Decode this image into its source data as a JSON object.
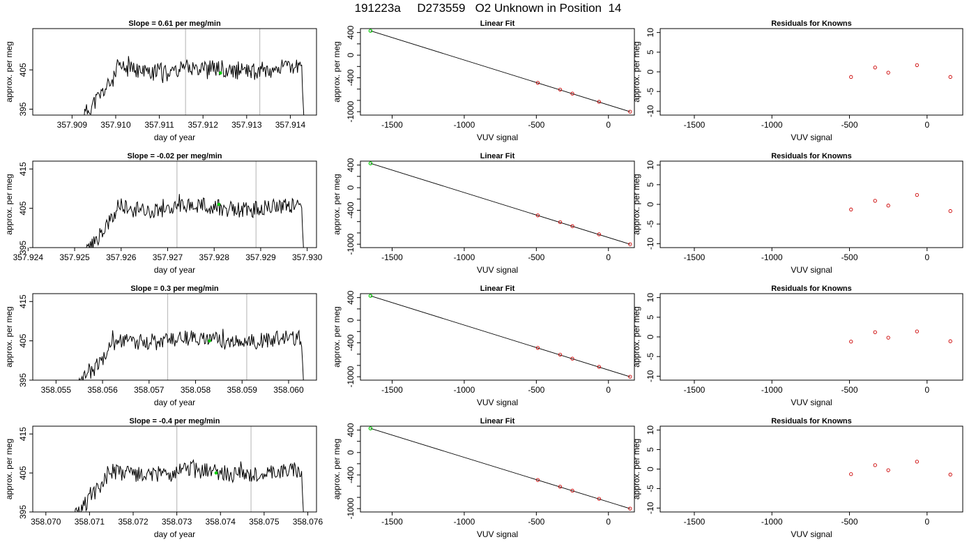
{
  "title": "191223a     D273559   O2 Unknown in Position  14",
  "colors": {
    "trace": "#000000",
    "marker_unknown": "#00cc00",
    "marker_known": "#cc0000",
    "vline": "#bfbfbf",
    "frame": "#000000"
  },
  "chart_data": [
    {
      "type": "line",
      "title": "Slope =  0.61  per meg/min",
      "xlabel": "day of year",
      "ylabel": "approx. per meg",
      "xlim": [
        357.9081,
        357.9146
      ],
      "ylim": [
        393.5,
        415.5
      ],
      "x_ticks": [
        "357.909",
        "357.910",
        "357.911",
        "357.912",
        "357.913",
        "357.914"
      ],
      "y_ticks": [
        "395",
        "405"
      ],
      "vlines": [
        357.9116,
        357.9133
      ],
      "marker": {
        "x": 357.9124,
        "y": 404.2
      },
      "trace_seed": 11
    },
    {
      "type": "line",
      "title": "Linear Fit",
      "xlabel": "VUV signal",
      "ylabel": "approx. per meg",
      "xlim": [
        -1720,
        180
      ],
      "ylim": [
        -1060,
        470
      ],
      "x_ticks": [
        "-1500",
        "-1000",
        "-500",
        "0"
      ],
      "y_ticks": [
        "400",
        "0",
        "-400",
        "-1000"
      ],
      "fit_line": [
        [
          -1650,
          430
        ],
        [
          150,
          -1000
        ]
      ],
      "unknown_points": [
        [
          -1650,
          430
        ]
      ],
      "known_points": [
        [
          -490,
          -490
        ],
        [
          -335,
          -610
        ],
        [
          -250,
          -680
        ],
        [
          -65,
          -825
        ],
        [
          150,
          -1000
        ]
      ]
    },
    {
      "type": "scatter",
      "title": "Residuals for Knowns",
      "xlabel": "VUV signal",
      "ylabel": "approx. per meg",
      "xlim": [
        -1720,
        230
      ],
      "ylim": [
        -11,
        11
      ],
      "x_ticks": [
        "-1500",
        "-1000",
        "-500",
        "0"
      ],
      "y_ticks": [
        "10",
        "5",
        "0",
        "-5",
        "-10"
      ],
      "known_points": [
        [
          -490,
          -1.3
        ],
        [
          -335,
          1.1
        ],
        [
          -250,
          -0.2
        ],
        [
          -65,
          1.7
        ],
        [
          150,
          -1.3
        ]
      ]
    },
    {
      "type": "line",
      "title": "Slope =  -0.02  per meg/min",
      "xlabel": "day of year",
      "ylabel": "approx. per meg",
      "xlim": [
        357.9241,
        357.9302
      ],
      "ylim": [
        395,
        417
      ],
      "x_ticks": [
        "357.924",
        "357.925",
        "357.926",
        "357.927",
        "357.928",
        "357.929",
        "357.930"
      ],
      "y_ticks": [
        "415",
        "405",
        "395"
      ],
      "vlines": [
        357.9272,
        357.9289
      ],
      "marker": {
        "x": 357.9281,
        "y": 406.0
      },
      "trace_seed": 23
    },
    {
      "type": "line",
      "title": "Linear Fit",
      "xlabel": "VUV signal",
      "ylabel": "approx. per meg",
      "xlim": [
        -1720,
        180
      ],
      "ylim": [
        -1060,
        470
      ],
      "x_ticks": [
        "-1500",
        "-1000",
        "-500",
        "0"
      ],
      "y_ticks": [
        "400",
        "0",
        "-400",
        "-1000"
      ],
      "fit_line": [
        [
          -1650,
          430
        ],
        [
          150,
          -1000
        ]
      ],
      "unknown_points": [
        [
          -1650,
          430
        ]
      ],
      "known_points": [
        [
          -490,
          -490
        ],
        [
          -335,
          -610
        ],
        [
          -250,
          -680
        ],
        [
          -65,
          -825
        ],
        [
          150,
          -1000
        ]
      ]
    },
    {
      "type": "scatter",
      "title": "Residuals for Knowns",
      "xlabel": "VUV signal",
      "ylabel": "approx. per meg",
      "xlim": [
        -1720,
        230
      ],
      "ylim": [
        -11,
        11
      ],
      "x_ticks": [
        "-1500",
        "-1000",
        "-500",
        "0"
      ],
      "y_ticks": [
        "10",
        "5",
        "0",
        "-5",
        "-10"
      ],
      "known_points": [
        [
          -490,
          -1.3
        ],
        [
          -335,
          0.9
        ],
        [
          -250,
          -0.3
        ],
        [
          -65,
          2.4
        ],
        [
          150,
          -1.7
        ]
      ]
    },
    {
      "type": "line",
      "title": "Slope =  0.3  per meg/min",
      "xlabel": "day of year",
      "ylabel": "approx. per meg",
      "xlim": [
        358.0545,
        358.0606
      ],
      "ylim": [
        395,
        417
      ],
      "x_ticks": [
        "358.055",
        "358.056",
        "358.057",
        "358.058",
        "358.059",
        "358.060"
      ],
      "y_ticks": [
        "415",
        "405",
        "395"
      ],
      "vlines": [
        358.0574,
        358.0591
      ],
      "marker": {
        "x": 358.0583,
        "y": 405.0
      },
      "trace_seed": 37
    },
    {
      "type": "line",
      "title": "Linear Fit",
      "xlabel": "VUV signal",
      "ylabel": "approx. per meg",
      "xlim": [
        -1720,
        180
      ],
      "ylim": [
        -1060,
        470
      ],
      "x_ticks": [
        "-1500",
        "-1000",
        "-500",
        "0"
      ],
      "y_ticks": [
        "400",
        "0",
        "-400",
        "-1000"
      ],
      "fit_line": [
        [
          -1650,
          430
        ],
        [
          150,
          -1000
        ]
      ],
      "unknown_points": [
        [
          -1650,
          430
        ]
      ],
      "known_points": [
        [
          -490,
          -490
        ],
        [
          -335,
          -610
        ],
        [
          -250,
          -680
        ],
        [
          -65,
          -825
        ],
        [
          150,
          -1000
        ]
      ]
    },
    {
      "type": "scatter",
      "title": "Residuals for Knowns",
      "xlabel": "VUV signal",
      "ylabel": "approx. per meg",
      "xlim": [
        -1720,
        230
      ],
      "ylim": [
        -11,
        11
      ],
      "x_ticks": [
        "-1500",
        "-1000",
        "-500",
        "0"
      ],
      "y_ticks": [
        "10",
        "5",
        "0",
        "-5",
        "-10"
      ],
      "known_points": [
        [
          -490,
          -1.2
        ],
        [
          -335,
          1.2
        ],
        [
          -250,
          -0.2
        ],
        [
          -65,
          1.4
        ],
        [
          150,
          -1.1
        ]
      ]
    },
    {
      "type": "line",
      "title": "Slope =  -0.4  per meg/min",
      "xlabel": "day of year",
      "ylabel": "approx. per meg",
      "xlim": [
        358.0697,
        358.0762
      ],
      "ylim": [
        395,
        417
      ],
      "x_ticks": [
        "358.070",
        "358.071",
        "358.072",
        "358.073",
        "358.074",
        "358.075",
        "358.076"
      ],
      "y_ticks": [
        "415",
        "405",
        "395"
      ],
      "vlines": [
        358.073,
        358.0747
      ],
      "marker": {
        "x": 358.0739,
        "y": 405.0
      },
      "trace_seed": 51
    },
    {
      "type": "line",
      "title": "Linear Fit",
      "xlabel": "VUV signal",
      "ylabel": "approx. per meg",
      "xlim": [
        -1720,
        180
      ],
      "ylim": [
        -1060,
        470
      ],
      "x_ticks": [
        "-1500",
        "-1000",
        "-500",
        "0"
      ],
      "y_ticks": [
        "400",
        "0",
        "-400",
        "-1000"
      ],
      "fit_line": [
        [
          -1650,
          430
        ],
        [
          150,
          -1000
        ]
      ],
      "unknown_points": [
        [
          -1650,
          430
        ]
      ],
      "known_points": [
        [
          -490,
          -490
        ],
        [
          -335,
          -610
        ],
        [
          -250,
          -680
        ],
        [
          -65,
          -825
        ],
        [
          150,
          -1000
        ]
      ]
    },
    {
      "type": "scatter",
      "title": "Residuals for Knowns",
      "xlabel": "VUV signal",
      "ylabel": "approx. per meg",
      "xlim": [
        -1720,
        230
      ],
      "ylim": [
        -11,
        11
      ],
      "x_ticks": [
        "-1500",
        "-1000",
        "-500",
        "0"
      ],
      "y_ticks": [
        "10",
        "5",
        "0",
        "-5",
        "-10"
      ],
      "known_points": [
        [
          -490,
          -1.3
        ],
        [
          -335,
          1.0
        ],
        [
          -250,
          -0.3
        ],
        [
          -65,
          1.9
        ],
        [
          150,
          -1.4
        ]
      ]
    }
  ]
}
